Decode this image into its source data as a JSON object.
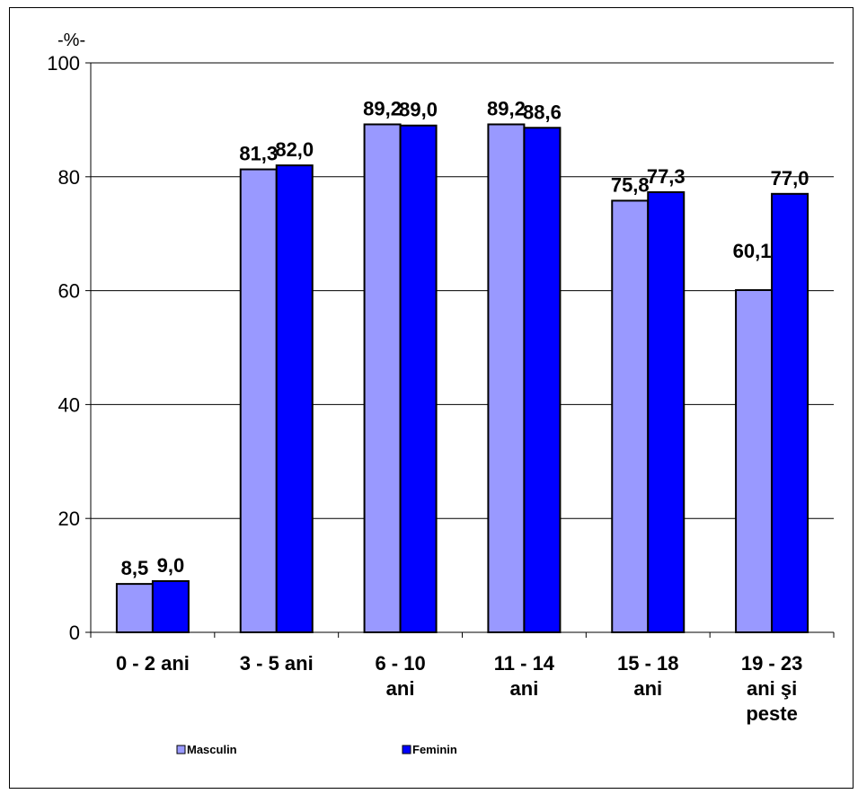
{
  "chart_data": {
    "type": "bar",
    "unit_label": "-%-",
    "categories": [
      [
        "0 - 2 ani"
      ],
      [
        "3 - 5 ani"
      ],
      [
        "6 - 10",
        "ani"
      ],
      [
        "11 - 14",
        "ani"
      ],
      [
        "15 - 18",
        "ani"
      ],
      [
        "19 - 23",
        "ani şi",
        "peste"
      ]
    ],
    "series": [
      {
        "name": "Masculin",
        "color": "#9999ff",
        "values": [
          8.5,
          81.3,
          89.2,
          89.2,
          75.8,
          60.1
        ],
        "labels": [
          "8,5",
          "81,3",
          "89,2",
          "89,2",
          "75,8",
          "60,1"
        ]
      },
      {
        "name": "Feminin",
        "color": "#0000ff",
        "values": [
          9.0,
          82.0,
          89.0,
          88.6,
          77.3,
          77.0
        ],
        "labels": [
          "9,0",
          "82,0",
          "89,0",
          "88,6",
          "77,3",
          "77,0"
        ]
      }
    ],
    "ylim": [
      0,
      100
    ],
    "yticks": [
      0,
      20,
      40,
      60,
      80,
      100
    ],
    "grid": true,
    "legend": "bottom"
  }
}
